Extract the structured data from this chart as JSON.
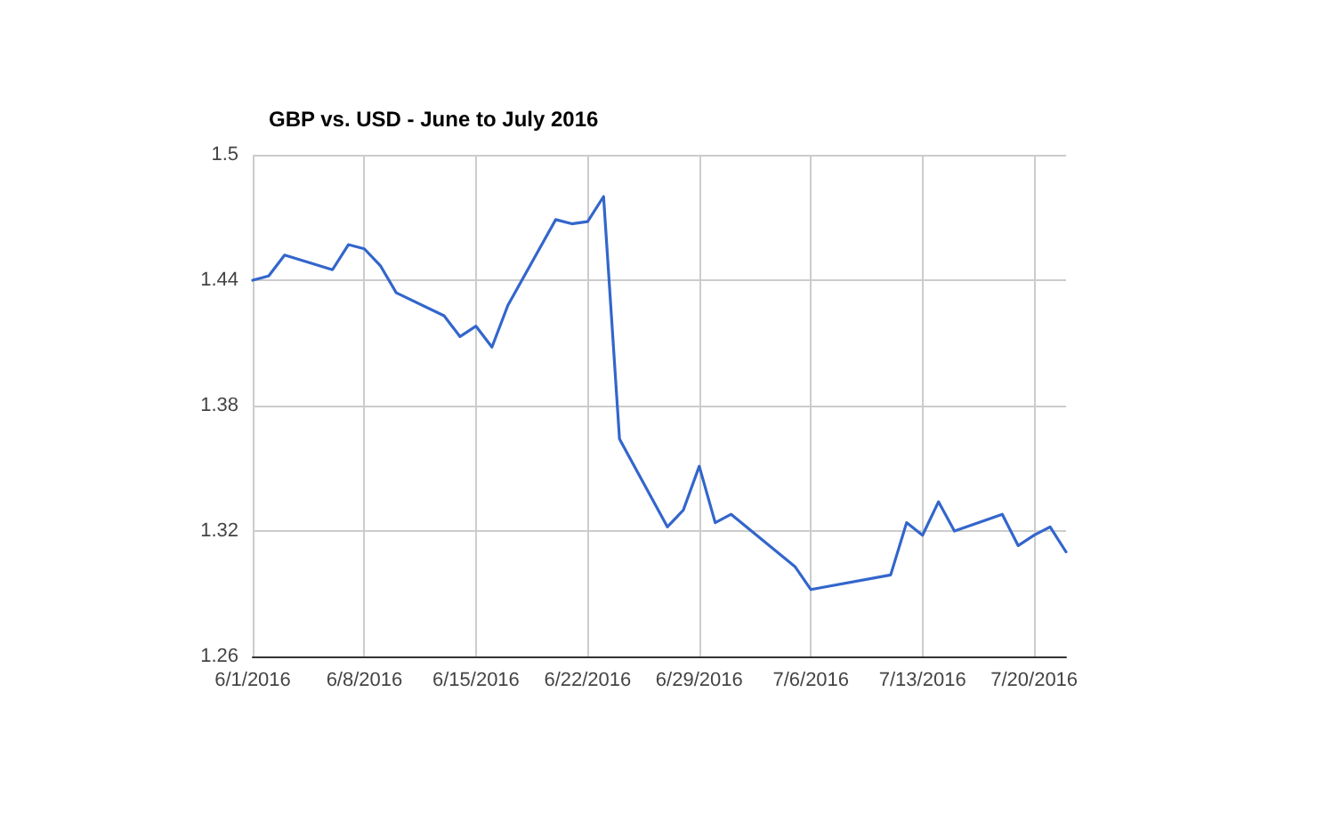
{
  "chart_data": {
    "type": "line",
    "title": "GBP vs. USD - June to July 2016",
    "x": [
      "2016-06-01",
      "2016-06-02",
      "2016-06-03",
      "2016-06-06",
      "2016-06-07",
      "2016-06-08",
      "2016-06-09",
      "2016-06-10",
      "2016-06-13",
      "2016-06-14",
      "2016-06-15",
      "2016-06-16",
      "2016-06-17",
      "2016-06-20",
      "2016-06-21",
      "2016-06-22",
      "2016-06-23",
      "2016-06-24",
      "2016-06-27",
      "2016-06-28",
      "2016-06-29",
      "2016-06-30",
      "2016-07-01",
      "2016-07-05",
      "2016-07-06",
      "2016-07-11",
      "2016-07-12",
      "2016-07-13",
      "2016-07-14",
      "2016-07-15",
      "2016-07-18",
      "2016-07-19",
      "2016-07-20",
      "2016-07-21",
      "2016-07-22"
    ],
    "series": [
      {
        "color": "#3366cc",
        "values": [
          1.44,
          1.442,
          1.452,
          1.445,
          1.457,
          1.455,
          1.447,
          1.434,
          1.423,
          1.413,
          1.418,
          1.408,
          1.428,
          1.469,
          1.467,
          1.468,
          1.48,
          1.364,
          1.322,
          1.33,
          1.351,
          1.324,
          1.328,
          1.303,
          1.292,
          1.299,
          1.324,
          1.318,
          1.334,
          1.32,
          1.328,
          1.313,
          1.318,
          1.322,
          1.31
        ]
      }
    ],
    "xlim": [
      "2016-06-01",
      "2016-07-22"
    ],
    "xticks": [
      {
        "value": "2016-06-01",
        "label": "6/1/2016"
      },
      {
        "value": "2016-06-08",
        "label": "6/8/2016"
      },
      {
        "value": "2016-06-15",
        "label": "6/15/2016"
      },
      {
        "value": "2016-06-22",
        "label": "6/22/2016"
      },
      {
        "value": "2016-06-29",
        "label": "6/29/2016"
      },
      {
        "value": "2016-07-06",
        "label": "7/6/2016"
      },
      {
        "value": "2016-07-13",
        "label": "7/13/2016"
      },
      {
        "value": "2016-07-20",
        "label": "7/20/2016"
      }
    ],
    "ylim": [
      1.26,
      1.5
    ],
    "yticks": [
      1.26,
      1.32,
      1.38,
      1.44,
      1.5
    ],
    "grid": true,
    "marker": "none",
    "line_style": "solid"
  }
}
